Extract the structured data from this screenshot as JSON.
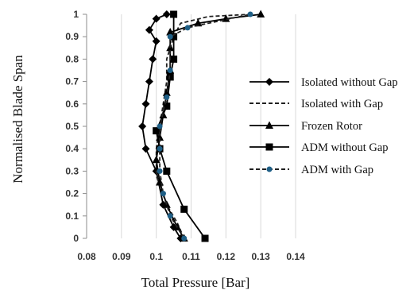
{
  "chart_data": {
    "type": "line",
    "title": "",
    "xlabel": "Total Pressure [Bar]",
    "ylabel": "Normalised Blade Span",
    "xlim": [
      0.08,
      0.14
    ],
    "ylim": [
      0,
      1
    ],
    "x_ticks": [
      "0.08",
      "0.09",
      "0.1",
      "0.11",
      "0.12",
      "0.13",
      "0.14"
    ],
    "y_ticks": [
      "0",
      "0.1",
      "0.2",
      "0.3",
      "0.4",
      "0.5",
      "0.6",
      "0.7",
      "0.8",
      "0.9",
      "1"
    ],
    "grid": "vertical",
    "legend_position": "right",
    "series": [
      {
        "name": "Isolated without Gap",
        "line_style": "solid",
        "marker": "diamond",
        "color": "#000000",
        "points": [
          [
            0.107,
            0.0
          ],
          [
            0.105,
            0.05
          ],
          [
            0.102,
            0.15
          ],
          [
            0.1,
            0.3
          ],
          [
            0.097,
            0.4
          ],
          [
            0.096,
            0.5
          ],
          [
            0.097,
            0.6
          ],
          [
            0.098,
            0.7
          ],
          [
            0.099,
            0.8
          ],
          [
            0.1,
            0.88
          ],
          [
            0.098,
            0.93
          ],
          [
            0.1,
            0.98
          ],
          [
            0.103,
            1.0
          ]
        ]
      },
      {
        "name": "Isolated with Gap",
        "line_style": "dashed",
        "marker": "none",
        "color": "#000000",
        "points": [
          [
            0.108,
            0.0
          ],
          [
            0.106,
            0.07
          ],
          [
            0.103,
            0.15
          ],
          [
            0.1,
            0.28
          ],
          [
            0.1,
            0.4
          ],
          [
            0.101,
            0.5
          ],
          [
            0.102,
            0.6
          ],
          [
            0.103,
            0.7
          ],
          [
            0.103,
            0.8
          ],
          [
            0.105,
            0.9
          ],
          [
            0.107,
            0.96
          ],
          [
            0.115,
            0.99
          ],
          [
            0.127,
            1.0
          ]
        ]
      },
      {
        "name": "Frozen Rotor",
        "line_style": "solid",
        "marker": "triangle",
        "color": "#000000",
        "points": [
          [
            0.108,
            0.0
          ],
          [
            0.106,
            0.05
          ],
          [
            0.103,
            0.15
          ],
          [
            0.101,
            0.25
          ],
          [
            0.1,
            0.35
          ],
          [
            0.101,
            0.45
          ],
          [
            0.102,
            0.55
          ],
          [
            0.103,
            0.65
          ],
          [
            0.104,
            0.75
          ],
          [
            0.104,
            0.85
          ],
          [
            0.104,
            0.92
          ],
          [
            0.112,
            0.96
          ],
          [
            0.12,
            0.98
          ],
          [
            0.13,
            1.0
          ]
        ]
      },
      {
        "name": "ADM without Gap",
        "line_style": "solid",
        "marker": "square",
        "color": "#000000",
        "points": [
          [
            0.114,
            0.0
          ],
          [
            0.108,
            0.13
          ],
          [
            0.103,
            0.3
          ],
          [
            0.101,
            0.4
          ],
          [
            0.1,
            0.48
          ],
          [
            0.103,
            0.59
          ],
          [
            0.104,
            0.72
          ],
          [
            0.105,
            0.8
          ],
          [
            0.105,
            0.9
          ],
          [
            0.105,
            1.0
          ]
        ]
      },
      {
        "name": "ADM with Gap",
        "line_style": "dashed",
        "marker": "circle",
        "color": "#1f5f86",
        "points": [
          [
            0.108,
            0.0
          ],
          [
            0.104,
            0.1
          ],
          [
            0.102,
            0.2
          ],
          [
            0.101,
            0.3
          ],
          [
            0.101,
            0.4
          ],
          [
            0.101,
            0.5
          ],
          [
            0.103,
            0.63
          ],
          [
            0.104,
            0.75
          ],
          [
            0.104,
            0.9
          ],
          [
            0.109,
            0.94
          ],
          [
            0.127,
            1.0
          ]
        ]
      }
    ]
  }
}
